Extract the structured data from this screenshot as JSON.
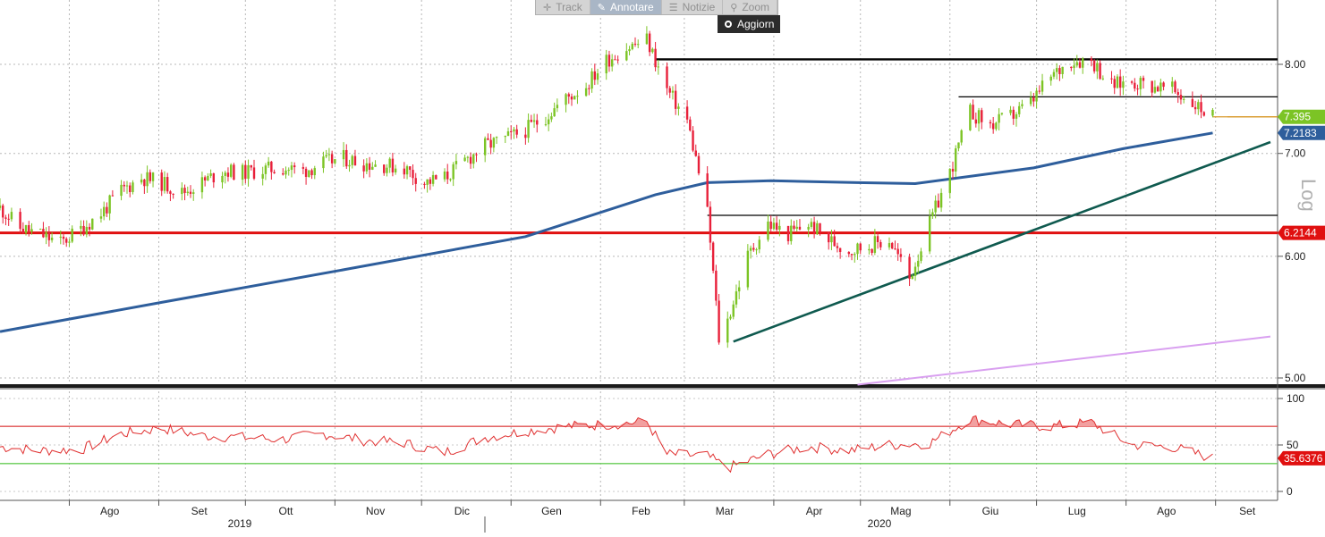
{
  "toolbar": {
    "buttons": [
      {
        "label": "Track",
        "icon": "crosshair-icon",
        "active": false
      },
      {
        "label": "Annotare",
        "icon": "pencil-icon",
        "active": true
      },
      {
        "label": "Notizie",
        "icon": "news-icon",
        "active": false
      },
      {
        "label": "Zoom",
        "icon": "magnifier-icon",
        "active": false
      }
    ],
    "refresh_label": "Aggiorn"
  },
  "scale_label": "Log",
  "chart_data": [
    {
      "type": "candlestick",
      "scale": "log",
      "ylim": [
        5.0,
        8.6
      ],
      "y_ticks": [
        "8.00",
        "7.00",
        "6.00",
        "5.00"
      ],
      "x_ticks": [
        "Ago",
        "Set",
        "Ott",
        "Nov",
        "Dic",
        "Gen",
        "Feb",
        "Mar",
        "Apr",
        "Mag",
        "Giu",
        "Lug",
        "Ago",
        "Set"
      ],
      "years": [
        "2019",
        "2020"
      ],
      "x_range": [
        "2019-07-08",
        "2020-09-20"
      ],
      "colors": {
        "up": "#7cc425",
        "down": "#e8203a",
        "ma": "#2e5e9c",
        "support": "#e01010",
        "trend": "#0f5a4f",
        "purple": "#d9a0f0"
      },
      "close": [
        [
          "2019-07-08",
          6.45
        ],
        [
          "2019-07-15",
          6.26
        ],
        [
          "2019-07-22",
          6.2
        ],
        [
          "2019-07-29",
          6.12
        ],
        [
          "2019-08-05",
          6.25
        ],
        [
          "2019-08-12",
          6.4
        ],
        [
          "2019-08-19",
          6.62
        ],
        [
          "2019-08-26",
          6.75
        ],
        [
          "2019-09-02",
          6.7
        ],
        [
          "2019-09-09",
          6.6
        ],
        [
          "2019-09-16",
          6.7
        ],
        [
          "2019-09-23",
          6.82
        ],
        [
          "2019-09-30",
          6.8
        ],
        [
          "2019-10-07",
          6.83
        ],
        [
          "2019-10-14",
          6.85
        ],
        [
          "2019-10-21",
          6.82
        ],
        [
          "2019-10-28",
          6.9
        ],
        [
          "2019-11-04",
          6.95
        ],
        [
          "2019-11-11",
          6.9
        ],
        [
          "2019-11-18",
          6.88
        ],
        [
          "2019-11-25",
          6.85
        ],
        [
          "2019-12-02",
          6.7
        ],
        [
          "2019-12-09",
          6.75
        ],
        [
          "2019-12-16",
          6.92
        ],
        [
          "2019-12-23",
          7.08
        ],
        [
          "2019-12-30",
          7.15
        ],
        [
          "2020-01-06",
          7.25
        ],
        [
          "2020-01-13",
          7.4
        ],
        [
          "2020-01-20",
          7.6
        ],
        [
          "2020-01-27",
          7.75
        ],
        [
          "2020-02-03",
          8.05
        ],
        [
          "2020-02-10",
          8.2
        ],
        [
          "2020-02-17",
          8.3
        ],
        [
          "2020-02-24",
          7.7
        ],
        [
          "2020-03-02",
          7.35
        ],
        [
          "2020-03-09",
          6.4
        ],
        [
          "2020-03-13",
          5.3
        ],
        [
          "2020-03-16",
          5.45
        ],
        [
          "2020-03-23",
          6.0
        ],
        [
          "2020-03-30",
          6.3
        ],
        [
          "2020-04-06",
          6.2
        ],
        [
          "2020-04-13",
          6.3
        ],
        [
          "2020-04-20",
          6.15
        ],
        [
          "2020-04-27",
          6.05
        ],
        [
          "2020-05-04",
          6.1
        ],
        [
          "2020-05-11",
          6.15
        ],
        [
          "2020-05-18",
          5.8
        ],
        [
          "2020-05-25",
          6.3
        ],
        [
          "2020-06-01",
          6.8
        ],
        [
          "2020-06-08",
          7.45
        ],
        [
          "2020-06-15",
          7.3
        ],
        [
          "2020-06-22",
          7.4
        ],
        [
          "2020-06-29",
          7.55
        ],
        [
          "2020-07-06",
          7.85
        ],
        [
          "2020-07-13",
          8.05
        ],
        [
          "2020-07-20",
          8.05
        ],
        [
          "2020-07-27",
          7.75
        ],
        [
          "2020-08-03",
          7.8
        ],
        [
          "2020-08-10",
          7.75
        ],
        [
          "2020-08-17",
          7.7
        ],
        [
          "2020-08-24",
          7.55
        ],
        [
          "2020-08-31",
          7.395
        ]
      ],
      "moving_average": [
        [
          "2019-07-08",
          5.36
        ],
        [
          "2019-09-02",
          5.6
        ],
        [
          "2019-11-04",
          5.88
        ],
        [
          "2020-01-06",
          6.18
        ],
        [
          "2020-02-20",
          6.58
        ],
        [
          "2020-03-09",
          6.7
        ],
        [
          "2020-03-31",
          6.72
        ],
        [
          "2020-04-30",
          6.7
        ],
        [
          "2020-05-20",
          6.69
        ],
        [
          "2020-06-30",
          6.85
        ],
        [
          "2020-07-31",
          7.05
        ],
        [
          "2020-08-31",
          7.2183
        ]
      ],
      "horizontal_lines": [
        {
          "value": 8.06,
          "from": "2020-02-20",
          "color": "#000000"
        },
        {
          "value": 7.62,
          "from": "2020-06-04",
          "color": "#000000"
        },
        {
          "value": 6.38,
          "from": "2020-03-09",
          "color": "#000000"
        },
        {
          "value": 6.2144,
          "from": "2019-07-08",
          "color": "#e01010"
        },
        {
          "value": 7.395,
          "from": "2020-08-31",
          "color": "#d89a2c"
        }
      ],
      "trendlines": [
        {
          "from": [
            "2020-03-18",
            5.28
          ],
          "to": [
            "2020-09-20",
            7.12
          ],
          "color": "#0f5a4f"
        },
        {
          "from": [
            "2020-04-30",
            4.95
          ],
          "to": [
            "2020-09-20",
            5.32
          ],
          "color": "#d9a0f0"
        }
      ],
      "value_labels": [
        {
          "text": "7.395",
          "value": 7.395,
          "bg": "#7cc425"
        },
        {
          "text": "7.2183",
          "value": 7.2183,
          "bg": "#2e5e9c"
        },
        {
          "text": "6.2144",
          "value": 6.2144,
          "bg": "#e01010"
        }
      ]
    },
    {
      "type": "line",
      "name": "RSI",
      "ylim": [
        -5,
        110
      ],
      "y_ticks": [
        "100",
        "50",
        "0"
      ],
      "levels": [
        70,
        30
      ],
      "values": [
        [
          "2019-07-08",
          48
        ],
        [
          "2019-07-22",
          44
        ],
        [
          "2019-08-05",
          45
        ],
        [
          "2019-08-19",
          62
        ],
        [
          "2019-09-02",
          68
        ],
        [
          "2019-09-16",
          60
        ],
        [
          "2019-09-30",
          58
        ],
        [
          "2019-10-14",
          56
        ],
        [
          "2019-10-28",
          62
        ],
        [
          "2019-11-11",
          55
        ],
        [
          "2019-11-25",
          52
        ],
        [
          "2019-12-09",
          42
        ],
        [
          "2019-12-23",
          58
        ],
        [
          "2020-01-06",
          65
        ],
        [
          "2020-01-20",
          70
        ],
        [
          "2020-02-03",
          72
        ],
        [
          "2020-02-17",
          75
        ],
        [
          "2020-02-24",
          40
        ],
        [
          "2020-03-09",
          38
        ],
        [
          "2020-03-16",
          25
        ],
        [
          "2020-03-30",
          40
        ],
        [
          "2020-04-13",
          48
        ],
        [
          "2020-04-27",
          44
        ],
        [
          "2020-05-11",
          50
        ],
        [
          "2020-05-25",
          52
        ],
        [
          "2020-06-08",
          78
        ],
        [
          "2020-06-22",
          72
        ],
        [
          "2020-07-06",
          70
        ],
        [
          "2020-07-20",
          74
        ],
        [
          "2020-08-03",
          50
        ],
        [
          "2020-08-17",
          48
        ],
        [
          "2020-08-31",
          35.6376
        ]
      ],
      "value_label": {
        "text": "35.6376",
        "value": 35.6376,
        "bg": "#e01010"
      }
    }
  ]
}
